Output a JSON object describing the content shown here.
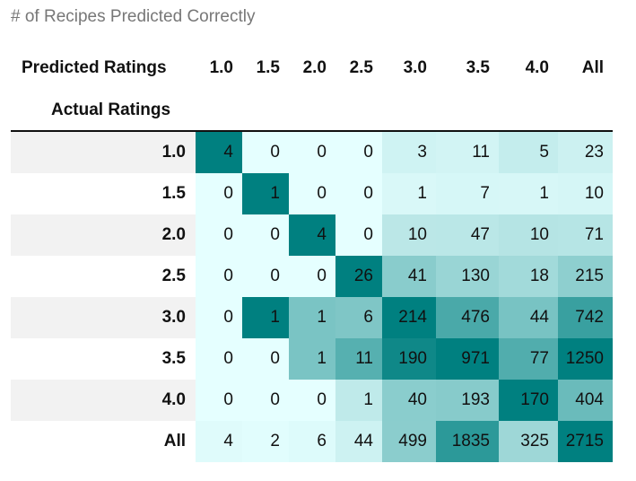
{
  "caption": "# of Recipes Predicted Correctly",
  "chart_data": {
    "type": "heatmap",
    "title": "",
    "column_header_label": "Predicted Ratings",
    "row_header_label": "Actual Ratings",
    "columns": [
      "1.0",
      "1.5",
      "2.0",
      "2.5",
      "3.0",
      "3.5",
      "4.0",
      "All"
    ],
    "rows": [
      "1.0",
      "1.5",
      "2.0",
      "2.5",
      "3.0",
      "3.5",
      "4.0",
      "All"
    ],
    "values": [
      [
        4,
        0,
        0,
        0,
        3,
        11,
        5,
        23
      ],
      [
        0,
        1,
        0,
        0,
        1,
        7,
        1,
        10
      ],
      [
        0,
        0,
        4,
        0,
        10,
        47,
        10,
        71
      ],
      [
        0,
        0,
        0,
        26,
        41,
        130,
        18,
        215
      ],
      [
        0,
        1,
        1,
        6,
        214,
        476,
        44,
        742
      ],
      [
        0,
        0,
        1,
        11,
        190,
        971,
        77,
        1250
      ],
      [
        0,
        0,
        0,
        1,
        40,
        193,
        170,
        404
      ],
      [
        4,
        2,
        6,
        44,
        499,
        1835,
        325,
        2715
      ]
    ],
    "colormap": {
      "low": "#e5ffff",
      "high": "#008080"
    }
  }
}
